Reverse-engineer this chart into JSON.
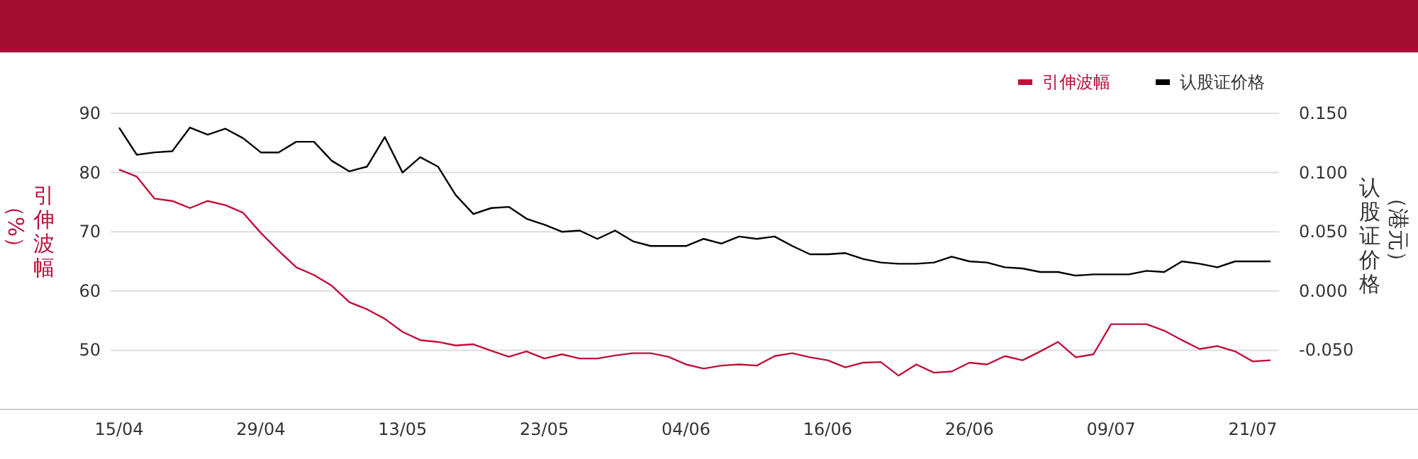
{
  "chart_data": {
    "type": "line",
    "ylabel": "引伸波幅（%）",
    "y2label": "认股证价格（港元）",
    "categories": [
      "15/04",
      null,
      null,
      null,
      null,
      null,
      null,
      null,
      "29/04",
      null,
      null,
      null,
      null,
      null,
      null,
      null,
      "13/05",
      null,
      null,
      null,
      null,
      null,
      null,
      null,
      "23/05",
      null,
      null,
      null,
      null,
      null,
      null,
      null,
      "04/06",
      null,
      null,
      null,
      null,
      null,
      null,
      null,
      "16/06",
      null,
      null,
      null,
      null,
      null,
      null,
      null,
      "26/06",
      null,
      null,
      null,
      null,
      null,
      null,
      null,
      "09/07",
      null,
      null,
      null,
      null,
      null,
      null,
      null,
      "21/07",
      null
    ],
    "series": [
      {
        "name": "引伸波幅",
        "color": "#c0103c",
        "axis": "y",
        "values": [
          80.5,
          79.3,
          75.6,
          75.2,
          74.0,
          75.2,
          74.5,
          73.2,
          69.8,
          66.8,
          64.0,
          62.7,
          60.9,
          58.1,
          56.9,
          55.3,
          53.1,
          51.7,
          51.4,
          50.8,
          51.0,
          49.9,
          48.9,
          49.8,
          48.6,
          49.3,
          48.6,
          48.6,
          49.1,
          49.5,
          49.5,
          48.9,
          47.6,
          46.9,
          47.4,
          47.6,
          47.4,
          49.0,
          49.5,
          48.8,
          48.3,
          47.1,
          47.9,
          48.0,
          45.7,
          47.6,
          46.2,
          46.4,
          47.9,
          47.6,
          49.0,
          48.3,
          49.8,
          51.4,
          48.8,
          49.3,
          54.4,
          54.4,
          54.4,
          53.3,
          51.7,
          50.2,
          50.7,
          49.8,
          48.1,
          48.3
        ]
      },
      {
        "name": "认股证价格",
        "color": "#000000",
        "axis": "y2",
        "values": [
          0.138,
          0.115,
          0.117,
          0.118,
          0.138,
          0.132,
          0.137,
          0.129,
          0.117,
          0.117,
          0.126,
          0.126,
          0.11,
          0.101,
          0.105,
          0.13,
          0.1,
          0.113,
          0.105,
          0.081,
          0.065,
          0.07,
          0.071,
          0.061,
          0.056,
          0.05,
          0.051,
          0.044,
          0.051,
          0.042,
          0.038,
          0.038,
          0.038,
          0.044,
          0.04,
          0.046,
          0.044,
          0.046,
          0.038,
          0.031,
          0.031,
          0.032,
          0.027,
          0.024,
          0.023,
          0.023,
          0.024,
          0.029,
          0.025,
          0.024,
          0.02,
          0.019,
          0.016,
          0.016,
          0.013,
          0.014,
          0.014,
          0.014,
          0.017,
          0.016,
          0.025,
          0.023,
          0.02,
          0.025,
          0.025,
          0.025
        ]
      }
    ],
    "ylim": [
      40,
      90
    ],
    "yticks": [
      50,
      60,
      70,
      80,
      90
    ],
    "y2lim": [
      -0.1,
      0.15
    ],
    "y2ticks": [
      {
        "value": -0.05,
        "label": "-0.050"
      },
      {
        "value": 0,
        "label": "0.000"
      },
      {
        "value": 0.05,
        "label": "0.050"
      },
      {
        "value": 0.1,
        "label": "0.100"
      },
      {
        "value": 0.15,
        "label": "0.150"
      }
    ],
    "grid": "y",
    "legend": "top right",
    "line_style": "solid",
    "marker": "none"
  }
}
